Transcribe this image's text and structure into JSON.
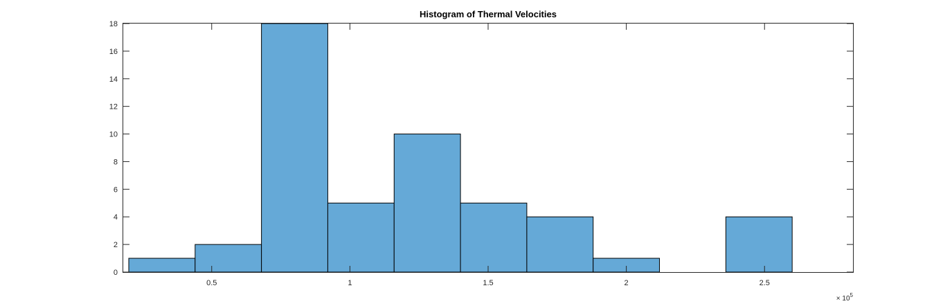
{
  "chart_data": {
    "type": "histogram",
    "title": "Histogram of Thermal Velocities",
    "xlabel": "",
    "ylabel": "",
    "x_scale_exponent": {
      "base": "× 10",
      "power": "5"
    },
    "bin_edges": [
      0.2,
      0.44,
      0.68,
      0.92,
      1.16,
      1.4,
      1.64,
      1.88,
      2.12,
      2.36,
      2.6
    ],
    "values": [
      1,
      2,
      18,
      5,
      10,
      5,
      4,
      1,
      0,
      4
    ],
    "xlim": [
      0.18,
      2.82
    ],
    "ylim": [
      0,
      18
    ],
    "xticks": [
      {
        "value": 0.5,
        "label": "0.5"
      },
      {
        "value": 1.0,
        "label": "1"
      },
      {
        "value": 1.5,
        "label": "1.5"
      },
      {
        "value": 2.0,
        "label": "2"
      },
      {
        "value": 2.5,
        "label": "2.5"
      }
    ],
    "yticks": [
      {
        "value": 0,
        "label": "0"
      },
      {
        "value": 2,
        "label": "2"
      },
      {
        "value": 4,
        "label": "4"
      },
      {
        "value": 6,
        "label": "6"
      },
      {
        "value": 8,
        "label": "8"
      },
      {
        "value": 10,
        "label": "10"
      },
      {
        "value": 12,
        "label": "12"
      },
      {
        "value": 14,
        "label": "14"
      },
      {
        "value": 16,
        "label": "16"
      },
      {
        "value": 18,
        "label": "18"
      }
    ],
    "grid": false,
    "bar_color": "#65A9D7",
    "edge_color": "#000000"
  }
}
